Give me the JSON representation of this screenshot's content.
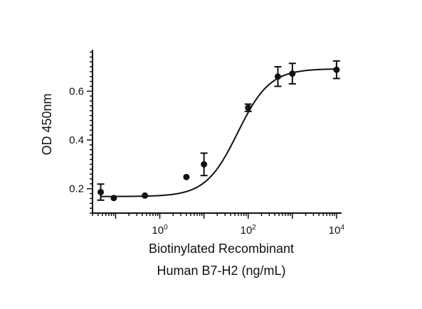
{
  "chart_data": {
    "type": "scatter",
    "title": "",
    "xlabel_lines": [
      "Biotinylated Recombinant",
      "Human B7-H2 (ng/mL)"
    ],
    "ylabel": "OD 450nm",
    "x_scale": "log10",
    "xlim": [
      0.03,
      13000
    ],
    "ylim": [
      0.1,
      0.77
    ],
    "x_ticks": [
      {
        "value": 1,
        "base": "10",
        "exp": "0"
      },
      {
        "value": 100,
        "base": "10",
        "exp": "2"
      },
      {
        "value": 10000,
        "base": "10",
        "exp": "4"
      }
    ],
    "y_ticks": [
      {
        "value": 0.2,
        "label": "0.2"
      },
      {
        "value": 0.4,
        "label": "0.4"
      },
      {
        "value": 0.6,
        "label": "0.6"
      }
    ],
    "grid": false,
    "legend": "none",
    "series": [
      {
        "x": [
          0.046,
          0.091,
          0.46,
          4.0,
          10.0,
          100,
          470,
          1000,
          10000
        ],
        "y": [
          0.186,
          0.162,
          0.172,
          0.248,
          0.3,
          0.532,
          0.66,
          0.672,
          0.688
        ],
        "error": [
          0.033,
          0.0,
          0.0,
          0.0,
          0.046,
          0.015,
          0.04,
          0.042,
          0.036
        ]
      }
    ],
    "fit_curve": {
      "model": "4PL",
      "bottom": 0.168,
      "top": 0.692,
      "ec50": 58,
      "hill": 1.2
    },
    "colors": {
      "ink": "#111111"
    }
  }
}
